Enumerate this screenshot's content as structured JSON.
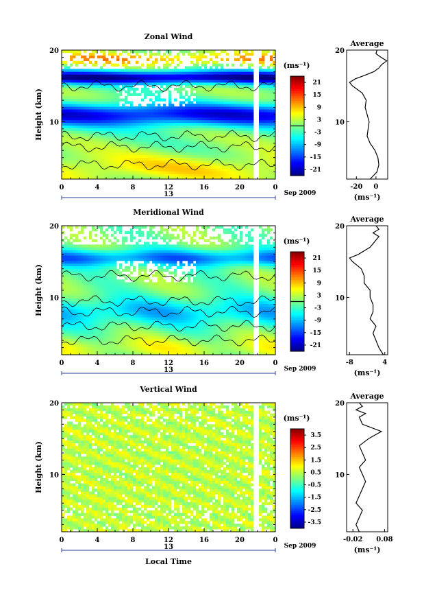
{
  "chart_data": [
    {
      "type": "heatmap",
      "title": "Zonal Wind",
      "ylabel": "Height (km)",
      "ylim": [
        2,
        20
      ],
      "y_ticks": [
        "20",
        "10"
      ],
      "xlim": [
        0,
        24
      ],
      "x_ticks": [
        "0",
        "4",
        "8",
        "12",
        "16",
        "20",
        "0"
      ],
      "date_mark": "13",
      "date_label": "Sep 2009",
      "colorbar": {
        "unit": "(ms⁻¹)",
        "ticks": [
          "21",
          "15",
          "9",
          "3",
          "-3",
          "-9",
          "-15",
          "-21"
        ],
        "range": [
          -24,
          24
        ]
      },
      "profile": {
        "title": "Average",
        "xlabel": "(ms⁻¹)",
        "x_ticks": [
          "-20",
          "0"
        ],
        "xlim": [
          -30,
          12
        ],
        "heights": [
          2,
          3,
          4,
          5,
          6,
          7,
          8,
          9,
          10,
          11,
          12,
          13,
          14,
          15,
          15.5,
          16,
          16.5,
          17,
          17.5,
          18,
          18.5,
          19,
          19.5,
          20
        ],
        "values": [
          -6,
          1,
          3,
          2,
          -1,
          -6,
          -9,
          -8,
          -7,
          -9,
          -11,
          -10,
          -14,
          -24,
          -27,
          -21,
          -11,
          -2,
          3,
          6,
          11,
          5,
          0,
          1
        ]
      }
    },
    {
      "type": "heatmap",
      "title": "Meridional Wind",
      "ylabel": "Height (km)",
      "ylim": [
        2,
        20
      ],
      "y_ticks": [
        "20",
        "10"
      ],
      "xlim": [
        0,
        24
      ],
      "x_ticks": [
        "0",
        "4",
        "8",
        "12",
        "16",
        "20",
        "0"
      ],
      "date_mark": "13",
      "date_label": "Sep 2009",
      "colorbar": {
        "unit": "(ms⁻¹)",
        "ticks": [
          "21",
          "15",
          "9",
          "3",
          "-3",
          "-9",
          "-15",
          "-21"
        ],
        "range": [
          -24,
          24
        ]
      },
      "profile": {
        "title": "Average",
        "xlabel": "(ms⁻¹)",
        "x_ticks": [
          "-8",
          "4"
        ],
        "xlim": [
          -9,
          5
        ],
        "heights": [
          2,
          3,
          4,
          5,
          6,
          7,
          8,
          9,
          10,
          11,
          12,
          13,
          14,
          15,
          15.5,
          16,
          17,
          18,
          18.5,
          19,
          19.5,
          20
        ],
        "values": [
          3.5,
          2,
          1,
          0,
          1,
          -1,
          0,
          0,
          -1,
          -1,
          -3,
          -3,
          -4,
          -7,
          -8,
          -5,
          -1,
          1,
          2,
          0,
          2,
          1
        ]
      }
    },
    {
      "type": "heatmap",
      "title": "Vertical Wind",
      "ylabel": "Height (km)",
      "xlabel": "Local Time",
      "ylim": [
        2,
        20
      ],
      "y_ticks": [
        "20",
        "10"
      ],
      "xlim": [
        0,
        24
      ],
      "x_ticks": [
        "0",
        "4",
        "8",
        "12",
        "16",
        "20",
        "0"
      ],
      "date_mark": "13",
      "date_label": "Sep 2009",
      "colorbar": {
        "unit": "(ms⁻¹)",
        "ticks": [
          "3.5",
          "2.5",
          "1.5",
          "0.5",
          "-0.5",
          "-1.5",
          "-2.5",
          "-3.5"
        ],
        "range": [
          -4,
          4
        ]
      },
      "profile": {
        "title": "Average",
        "xlabel": "(ms⁻¹)",
        "x_ticks": [
          "-0.02",
          "0.08"
        ],
        "xlim": [
          -0.04,
          0.09
        ],
        "heights": [
          2,
          3,
          4,
          5,
          6,
          7,
          8,
          9,
          10,
          11,
          12,
          13,
          14,
          15,
          16,
          17,
          18,
          18.5,
          19,
          19.5,
          20
        ],
        "values": [
          0.0,
          -0.01,
          0.0,
          0.01,
          -0.01,
          0.0,
          0.01,
          0.02,
          0.01,
          0.0,
          0.02,
          0.01,
          0.0,
          0.03,
          0.07,
          0.01,
          0.0,
          0.02,
          -0.01,
          0.01,
          0.0
        ]
      }
    }
  ]
}
